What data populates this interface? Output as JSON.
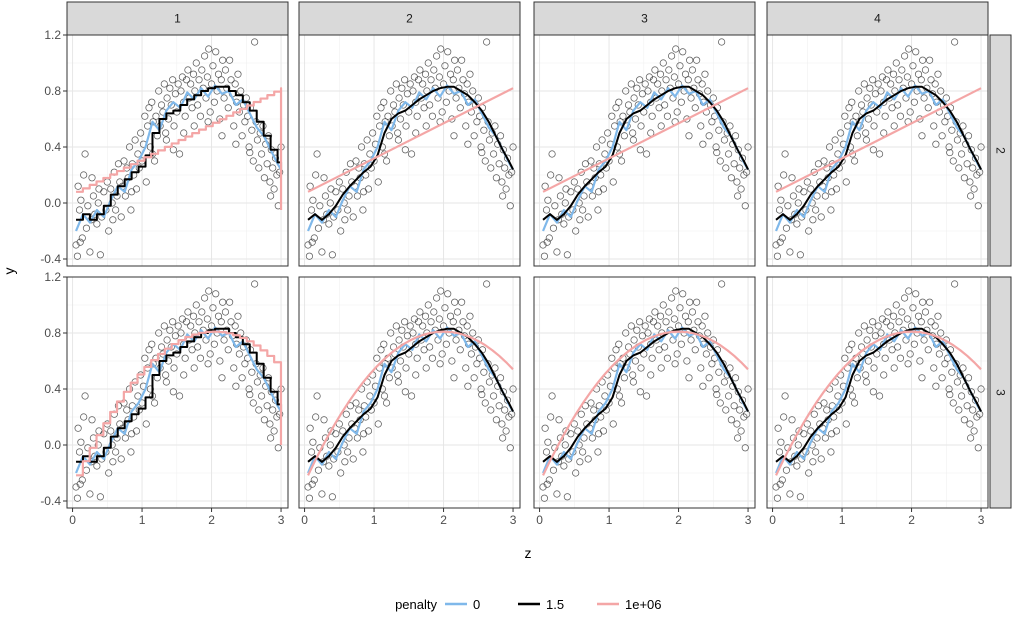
{
  "chart_data": {
    "type": "scatter",
    "facet_cols": [
      "1",
      "2",
      "3",
      "4"
    ],
    "facet_rows": [
      "2",
      "3"
    ],
    "xlabel": "z",
    "ylabel": "y",
    "xlim": [
      -0.08,
      3.1
    ],
    "ylim": [
      -0.45,
      1.2
    ],
    "x_ticks": [
      0,
      1,
      2,
      3
    ],
    "y_ticks": [
      -0.4,
      0.0,
      0.4,
      0.8,
      1.2
    ],
    "y_tick_labels": [
      "-0.4",
      "0.0",
      "0.4",
      "0.8",
      "1.2"
    ],
    "grid": true,
    "legend": {
      "title": "penalty",
      "position": "bottom",
      "entries": [
        {
          "label": "0",
          "color": "#7fb8ea"
        },
        {
          "label": "1.5",
          "color": "#000000"
        },
        {
          "label": "1e+06",
          "color": "#f4a6a6"
        }
      ]
    },
    "points": [
      [
        0.05,
        -0.3
      ],
      [
        0.07,
        -0.38
      ],
      [
        0.08,
        0.12
      ],
      [
        0.1,
        -0.05
      ],
      [
        0.12,
        0.02
      ],
      [
        0.14,
        -0.25
      ],
      [
        0.16,
        0.2
      ],
      [
        0.18,
        0.35
      ],
      [
        0.2,
        -0.18
      ],
      [
        0.22,
        -0.02
      ],
      [
        0.25,
        -0.35
      ],
      [
        0.27,
        -0.12
      ],
      [
        0.3,
        0.05
      ],
      [
        0.32,
        -0.08
      ],
      [
        0.35,
        -0.15
      ],
      [
        0.37,
        0.0
      ],
      [
        0.4,
        -0.37
      ],
      [
        0.42,
        -0.1
      ],
      [
        0.45,
        0.08
      ],
      [
        0.48,
        -0.05
      ],
      [
        0.5,
        0.15
      ],
      [
        0.52,
        -0.2
      ],
      [
        0.55,
        0.1
      ],
      [
        0.57,
        0.0
      ],
      [
        0.6,
        0.22
      ],
      [
        0.62,
        -0.05
      ],
      [
        0.64,
        0.05
      ],
      [
        0.66,
        0.28
      ],
      [
        0.68,
        0.15
      ],
      [
        0.7,
        -0.1
      ],
      [
        0.72,
        0.12
      ],
      [
        0.74,
        0.3
      ],
      [
        0.76,
        0.05
      ],
      [
        0.78,
        0.25
      ],
      [
        0.8,
        0.18
      ],
      [
        0.82,
        0.4
      ],
      [
        0.84,
        -0.05
      ],
      [
        0.86,
        0.28
      ],
      [
        0.88,
        0.2
      ],
      [
        0.9,
        0.45
      ],
      [
        0.92,
        0.1
      ],
      [
        0.94,
        0.35
      ],
      [
        0.96,
        0.25
      ],
      [
        0.98,
        0.5
      ],
      [
        1.0,
        0.3
      ],
      [
        1.02,
        0.42
      ],
      [
        1.04,
        0.62
      ],
      [
        1.06,
        0.15
      ],
      [
        1.08,
        0.55
      ],
      [
        1.1,
        0.68
      ],
      [
        1.12,
        0.4
      ],
      [
        1.14,
        0.72
      ],
      [
        1.16,
        0.58
      ],
      [
        1.18,
        0.3
      ],
      [
        1.2,
        0.62
      ],
      [
        1.22,
        0.48
      ],
      [
        1.24,
        0.8
      ],
      [
        1.26,
        0.55
      ],
      [
        1.28,
        0.7
      ],
      [
        1.3,
        0.65
      ],
      [
        1.32,
        0.85
      ],
      [
        1.34,
        0.5
      ],
      [
        1.36,
        0.75
      ],
      [
        1.38,
        0.6
      ],
      [
        1.4,
        0.82
      ],
      [
        1.42,
        0.7
      ],
      [
        1.44,
        0.88
      ],
      [
        1.46,
        0.55
      ],
      [
        1.48,
        0.78
      ],
      [
        1.5,
        0.65
      ],
      [
        1.52,
        0.85
      ],
      [
        1.54,
        0.35
      ],
      [
        1.56,
        0.8
      ],
      [
        1.58,
        0.9
      ],
      [
        1.6,
        0.72
      ],
      [
        1.62,
        0.62
      ],
      [
        1.64,
        0.88
      ],
      [
        1.66,
        0.95
      ],
      [
        1.68,
        0.75
      ],
      [
        1.7,
        0.85
      ],
      [
        1.72,
        0.68
      ],
      [
        1.74,
        0.92
      ],
      [
        1.76,
        0.8
      ],
      [
        1.78,
        1.0
      ],
      [
        1.8,
        0.7
      ],
      [
        1.82,
        0.88
      ],
      [
        1.84,
        0.62
      ],
      [
        1.86,
        0.95
      ],
      [
        1.88,
        0.82
      ],
      [
        1.9,
        1.05
      ],
      [
        1.92,
        0.75
      ],
      [
        1.94,
        0.9
      ],
      [
        1.96,
        1.1
      ],
      [
        1.98,
        0.65
      ],
      [
        2.0,
        0.85
      ],
      [
        2.02,
        0.98
      ],
      [
        2.04,
        0.72
      ],
      [
        2.06,
        1.08
      ],
      [
        2.08,
        0.8
      ],
      [
        2.1,
        0.92
      ],
      [
        2.12,
        0.6
      ],
      [
        2.14,
        0.88
      ],
      [
        2.16,
        1.02
      ],
      [
        2.18,
        0.75
      ],
      [
        2.2,
        0.95
      ],
      [
        2.22,
        0.82
      ],
      [
        2.24,
        0.68
      ],
      [
        2.26,
        1.02
      ],
      [
        2.28,
        0.88
      ],
      [
        2.3,
        0.78
      ],
      [
        2.32,
        0.55
      ],
      [
        2.34,
        0.85
      ],
      [
        2.36,
        0.72
      ],
      [
        2.38,
        0.92
      ],
      [
        2.4,
        0.65
      ],
      [
        2.42,
        0.8
      ],
      [
        2.44,
        0.48
      ],
      [
        2.46,
        0.7
      ],
      [
        2.48,
        0.58
      ],
      [
        2.5,
        0.75
      ],
      [
        2.52,
        0.62
      ],
      [
        2.54,
        0.4
      ],
      [
        2.56,
        0.68
      ],
      [
        2.58,
        0.52
      ],
      [
        2.6,
        0.3
      ],
      [
        2.62,
        1.15
      ],
      [
        2.64,
        0.58
      ],
      [
        2.66,
        0.45
      ],
      [
        2.68,
        0.25
      ],
      [
        2.7,
        0.5
      ],
      [
        2.72,
        0.35
      ],
      [
        2.74,
        0.55
      ],
      [
        2.76,
        0.18
      ],
      [
        2.78,
        0.42
      ],
      [
        2.8,
        0.28
      ],
      [
        2.82,
        0.48
      ],
      [
        2.84,
        0.15
      ],
      [
        2.86,
        0.38
      ],
      [
        2.88,
        0.25
      ],
      [
        2.9,
        0.1
      ],
      [
        2.92,
        0.32
      ],
      [
        2.94,
        0.2
      ],
      [
        2.96,
        -0.02
      ],
      [
        2.98,
        0.22
      ],
      [
        3.0,
        0.4
      ],
      [
        0.11,
        -0.28
      ],
      [
        0.38,
        0.1
      ],
      [
        0.58,
        -0.12
      ],
      [
        1.15,
        0.35
      ],
      [
        1.35,
        0.45
      ],
      [
        1.45,
        0.38
      ],
      [
        1.6,
        0.5
      ],
      [
        1.75,
        0.55
      ],
      [
        1.95,
        0.58
      ],
      [
        2.15,
        0.48
      ],
      [
        2.35,
        0.42
      ],
      [
        2.55,
        0.36
      ],
      [
        0.28,
        0.18
      ],
      [
        0.85,
        0.08
      ],
      [
        2.85,
        0.05
      ]
    ],
    "series": [
      {
        "name": "0",
        "color": "#7fb8ea",
        "step": false,
        "x": [
          0.05,
          0.15,
          0.25,
          0.35,
          0.45,
          0.55,
          0.65,
          0.75,
          0.85,
          0.95,
          1.05,
          1.15,
          1.25,
          1.35,
          1.45,
          1.55,
          1.65,
          1.75,
          1.85,
          1.95,
          2.05,
          2.15,
          2.25,
          2.35,
          2.45,
          2.55,
          2.65,
          2.75,
          2.85,
          2.95,
          3.0
        ],
        "y": [
          -0.2,
          -0.08,
          -0.14,
          -0.05,
          -0.1,
          0.02,
          0.12,
          0.08,
          0.24,
          0.3,
          0.4,
          0.58,
          0.52,
          0.66,
          0.72,
          0.68,
          0.79,
          0.74,
          0.82,
          0.76,
          0.84,
          0.78,
          0.8,
          0.7,
          0.74,
          0.64,
          0.54,
          0.48,
          0.38,
          0.28,
          0.24
        ]
      },
      {
        "name": "1.5",
        "color": "#000000",
        "step": false,
        "x": [
          0.05,
          0.15,
          0.25,
          0.35,
          0.45,
          0.55,
          0.65,
          0.75,
          0.85,
          0.95,
          1.05,
          1.15,
          1.25,
          1.35,
          1.45,
          1.55,
          1.65,
          1.75,
          1.85,
          1.95,
          2.05,
          2.15,
          2.25,
          2.35,
          2.45,
          2.55,
          2.65,
          2.75,
          2.85,
          2.95,
          3.0
        ],
        "y": [
          -0.12,
          -0.08,
          -0.12,
          -0.08,
          -0.02,
          0.06,
          0.12,
          0.17,
          0.22,
          0.26,
          0.34,
          0.5,
          0.6,
          0.64,
          0.66,
          0.7,
          0.74,
          0.77,
          0.8,
          0.82,
          0.83,
          0.83,
          0.8,
          0.77,
          0.72,
          0.66,
          0.58,
          0.48,
          0.38,
          0.29,
          0.24
        ]
      },
      {
        "name": "1e+06",
        "color": "#f4a6a6",
        "step": false,
        "x": [
          0.05,
          3.0
        ],
        "y": [
          0.08,
          0.82
        ]
      }
    ]
  }
}
